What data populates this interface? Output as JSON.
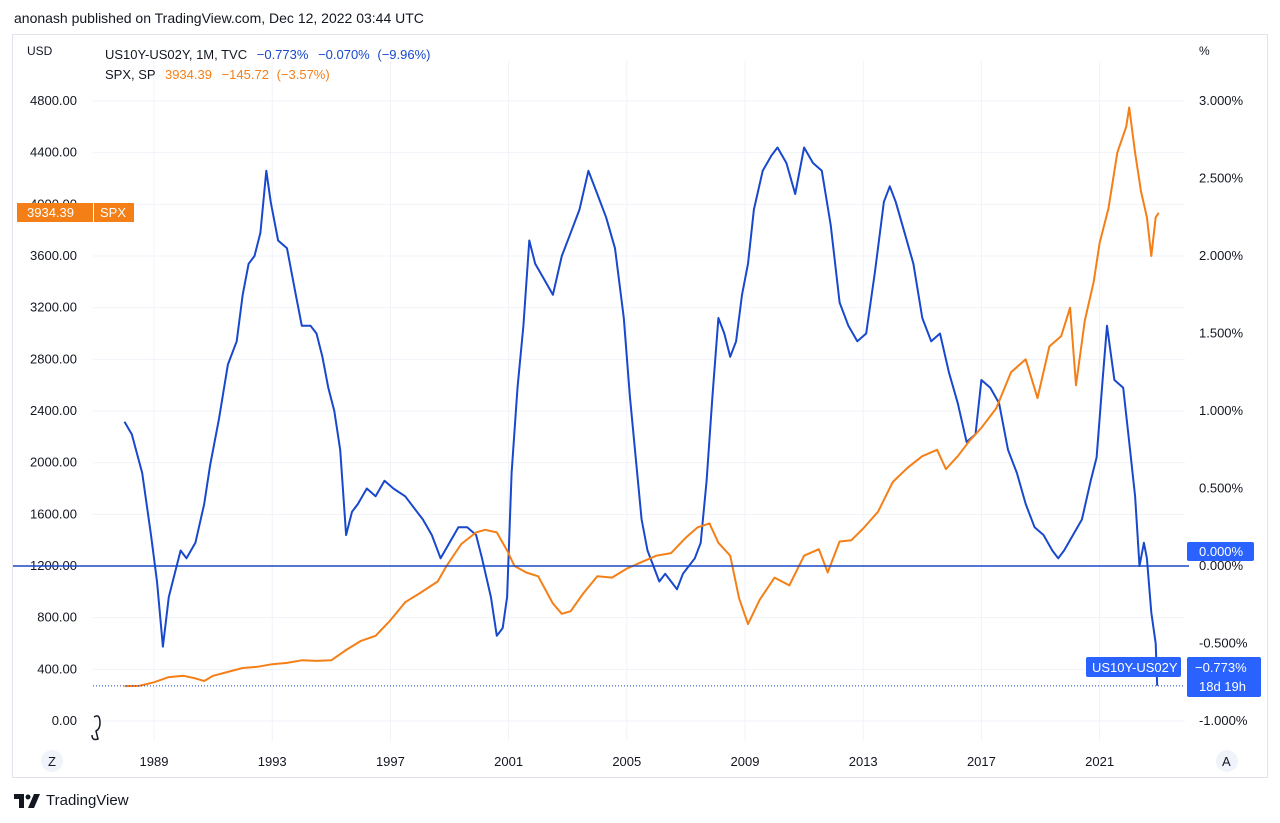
{
  "header": {
    "published": "anonash published on TradingView.com, Dec 12, 2022 03:44 UTC"
  },
  "footer": {
    "brand": "TradingView",
    "logo_icon": "tradingview-logo-icon"
  },
  "colors": {
    "spread": "#1848cc",
    "spx": "#f57f17",
    "grid": "#f0f3fa",
    "text": "#131722",
    "badge_blue": "#2962ff"
  },
  "chart_data": {
    "type": "line",
    "left_axis": {
      "unit_label": "USD",
      "ticks": [
        "4800.00",
        "4400.00",
        "4000.00",
        "3600.00",
        "3200.00",
        "2800.00",
        "2400.00",
        "2000.00",
        "1600.00",
        "1200.00",
        "800.00",
        "400.00",
        "0.00"
      ],
      "range": [
        0,
        4800
      ]
    },
    "right_axis": {
      "unit_label": "%",
      "ticks": [
        "3.000%",
        "2.500%",
        "2.000%",
        "1.500%",
        "1.000%",
        "0.500%",
        "0.000%",
        "-0.500%",
        "-1.000%"
      ],
      "range": [
        -1.0,
        3.0
      ]
    },
    "x_axis": {
      "ticks": [
        "1989",
        "1993",
        "1997",
        "2001",
        "2005",
        "2009",
        "2013",
        "2017",
        "2021"
      ]
    },
    "corner_buttons": {
      "left": "Z",
      "right": "A"
    },
    "legend": [
      {
        "name": "US10Y-US02Y, 1M, TVC",
        "last": "−0.773%",
        "change": "−0.070%",
        "change_pct": "(−9.96%)"
      },
      {
        "name": "SPX, SP",
        "last": "3934.39",
        "change": "−145.72",
        "change_pct": "(−3.57%)"
      }
    ],
    "badges": {
      "spx_price": "3934.39",
      "spx_label": "SPX",
      "zero_line": "0.000%",
      "spread_label": "US10Y-US02Y",
      "spread_value": "−0.773%",
      "spread_countdown": "18d 19h"
    },
    "series": [
      {
        "name": "US10Y-US02Y",
        "axis": "right",
        "unit": "%",
        "points": [
          [
            1988.0,
            0.93
          ],
          [
            1988.25,
            0.85
          ],
          [
            1988.6,
            0.6
          ],
          [
            1988.9,
            0.2
          ],
          [
            1989.1,
            -0.1
          ],
          [
            1989.3,
            -0.52
          ],
          [
            1989.5,
            -0.2
          ],
          [
            1989.7,
            -0.05
          ],
          [
            1989.9,
            0.1
          ],
          [
            1990.1,
            0.05
          ],
          [
            1990.4,
            0.15
          ],
          [
            1990.7,
            0.4
          ],
          [
            1990.9,
            0.65
          ],
          [
            1991.2,
            0.95
          ],
          [
            1991.5,
            1.3
          ],
          [
            1991.8,
            1.45
          ],
          [
            1992.0,
            1.75
          ],
          [
            1992.2,
            1.95
          ],
          [
            1992.4,
            2.0
          ],
          [
            1992.6,
            2.15
          ],
          [
            1992.8,
            2.55
          ],
          [
            1992.95,
            2.35
          ],
          [
            1993.2,
            2.1
          ],
          [
            1993.5,
            2.05
          ],
          [
            1993.8,
            1.75
          ],
          [
            1994.0,
            1.55
          ],
          [
            1994.3,
            1.55
          ],
          [
            1994.5,
            1.5
          ],
          [
            1994.7,
            1.35
          ],
          [
            1994.9,
            1.15
          ],
          [
            1995.1,
            1.0
          ],
          [
            1995.3,
            0.75
          ],
          [
            1995.5,
            0.2
          ],
          [
            1995.7,
            0.35
          ],
          [
            1995.9,
            0.4
          ],
          [
            1996.2,
            0.5
          ],
          [
            1996.5,
            0.45
          ],
          [
            1996.8,
            0.55
          ],
          [
            1997.1,
            0.5
          ],
          [
            1997.5,
            0.45
          ],
          [
            1997.9,
            0.35
          ],
          [
            1998.1,
            0.3
          ],
          [
            1998.4,
            0.2
          ],
          [
            1998.7,
            0.05
          ],
          [
            1999.0,
            0.15
          ],
          [
            1999.3,
            0.25
          ],
          [
            1999.6,
            0.25
          ],
          [
            1999.9,
            0.2
          ],
          [
            2000.1,
            0.05
          ],
          [
            2000.4,
            -0.2
          ],
          [
            2000.6,
            -0.45
          ],
          [
            2000.8,
            -0.4
          ],
          [
            2000.95,
            -0.2
          ],
          [
            2001.1,
            0.6
          ],
          [
            2001.3,
            1.15
          ],
          [
            2001.5,
            1.55
          ],
          [
            2001.7,
            2.1
          ],
          [
            2001.9,
            1.95
          ],
          [
            2002.2,
            1.85
          ],
          [
            2002.5,
            1.75
          ],
          [
            2002.8,
            2.0
          ],
          [
            2003.1,
            2.15
          ],
          [
            2003.4,
            2.3
          ],
          [
            2003.7,
            2.55
          ],
          [
            2004.0,
            2.4
          ],
          [
            2004.3,
            2.25
          ],
          [
            2004.6,
            2.05
          ],
          [
            2004.9,
            1.6
          ],
          [
            2005.1,
            1.1
          ],
          [
            2005.3,
            0.7
          ],
          [
            2005.5,
            0.3
          ],
          [
            2005.7,
            0.1
          ],
          [
            2005.9,
            0.0
          ],
          [
            2006.1,
            -0.1
          ],
          [
            2006.3,
            -0.05
          ],
          [
            2006.5,
            -0.1
          ],
          [
            2006.7,
            -0.15
          ],
          [
            2006.9,
            -0.05
          ],
          [
            2007.1,
            0.0
          ],
          [
            2007.3,
            0.05
          ],
          [
            2007.5,
            0.15
          ],
          [
            2007.7,
            0.55
          ],
          [
            2007.9,
            1.1
          ],
          [
            2008.1,
            1.6
          ],
          [
            2008.3,
            1.5
          ],
          [
            2008.5,
            1.35
          ],
          [
            2008.7,
            1.45
          ],
          [
            2008.9,
            1.75
          ],
          [
            2009.1,
            1.95
          ],
          [
            2009.3,
            2.3
          ],
          [
            2009.6,
            2.55
          ],
          [
            2009.9,
            2.65
          ],
          [
            2010.1,
            2.7
          ],
          [
            2010.4,
            2.6
          ],
          [
            2010.7,
            2.4
          ],
          [
            2011.0,
            2.7
          ],
          [
            2011.3,
            2.6
          ],
          [
            2011.6,
            2.55
          ],
          [
            2011.9,
            2.2
          ],
          [
            2012.2,
            1.7
          ],
          [
            2012.5,
            1.55
          ],
          [
            2012.8,
            1.45
          ],
          [
            2013.1,
            1.5
          ],
          [
            2013.4,
            1.9
          ],
          [
            2013.7,
            2.35
          ],
          [
            2013.9,
            2.45
          ],
          [
            2014.1,
            2.35
          ],
          [
            2014.4,
            2.15
          ],
          [
            2014.7,
            1.95
          ],
          [
            2015.0,
            1.6
          ],
          [
            2015.3,
            1.45
          ],
          [
            2015.6,
            1.5
          ],
          [
            2015.9,
            1.25
          ],
          [
            2016.2,
            1.05
          ],
          [
            2016.5,
            0.8
          ],
          [
            2016.8,
            0.85
          ],
          [
            2017.0,
            1.2
          ],
          [
            2017.3,
            1.15
          ],
          [
            2017.6,
            1.05
          ],
          [
            2017.9,
            0.75
          ],
          [
            2018.2,
            0.6
          ],
          [
            2018.5,
            0.4
          ],
          [
            2018.8,
            0.25
          ],
          [
            2019.1,
            0.2
          ],
          [
            2019.4,
            0.1
          ],
          [
            2019.6,
            0.05
          ],
          [
            2019.8,
            0.1
          ],
          [
            2020.1,
            0.2
          ],
          [
            2020.4,
            0.3
          ],
          [
            2020.7,
            0.55
          ],
          [
            2020.9,
            0.7
          ],
          [
            2021.1,
            1.2
          ],
          [
            2021.25,
            1.55
          ],
          [
            2021.5,
            1.2
          ],
          [
            2021.8,
            1.15
          ],
          [
            2022.0,
            0.8
          ],
          [
            2022.2,
            0.45
          ],
          [
            2022.35,
            0.0
          ],
          [
            2022.5,
            0.15
          ],
          [
            2022.6,
            0.05
          ],
          [
            2022.75,
            -0.3
          ],
          [
            2022.9,
            -0.5
          ],
          [
            2022.95,
            -0.773
          ]
        ]
      },
      {
        "name": "SPX",
        "axis": "left",
        "unit": "USD",
        "points": [
          [
            1988.0,
            270
          ],
          [
            1988.5,
            272
          ],
          [
            1989.0,
            300
          ],
          [
            1989.5,
            340
          ],
          [
            1990.0,
            350
          ],
          [
            1990.4,
            330
          ],
          [
            1990.7,
            310
          ],
          [
            1991.0,
            350
          ],
          [
            1991.5,
            380
          ],
          [
            1992.0,
            410
          ],
          [
            1992.5,
            420
          ],
          [
            1993.0,
            440
          ],
          [
            1993.5,
            450
          ],
          [
            1994.0,
            470
          ],
          [
            1994.5,
            465
          ],
          [
            1995.0,
            470
          ],
          [
            1995.5,
            550
          ],
          [
            1996.0,
            620
          ],
          [
            1996.5,
            660
          ],
          [
            1997.0,
            780
          ],
          [
            1997.5,
            920
          ],
          [
            1998.0,
            990
          ],
          [
            1998.6,
            1080
          ],
          [
            1998.9,
            1200
          ],
          [
            1999.4,
            1370
          ],
          [
            1999.9,
            1460
          ],
          [
            2000.2,
            1480
          ],
          [
            2000.6,
            1460
          ],
          [
            2000.95,
            1320
          ],
          [
            2001.2,
            1200
          ],
          [
            2001.6,
            1150
          ],
          [
            2002.0,
            1120
          ],
          [
            2002.5,
            910
          ],
          [
            2002.8,
            830
          ],
          [
            2003.1,
            850
          ],
          [
            2003.5,
            980
          ],
          [
            2004.0,
            1120
          ],
          [
            2004.5,
            1110
          ],
          [
            2005.0,
            1180
          ],
          [
            2005.5,
            1230
          ],
          [
            2006.0,
            1280
          ],
          [
            2006.5,
            1300
          ],
          [
            2007.0,
            1420
          ],
          [
            2007.4,
            1500
          ],
          [
            2007.8,
            1530
          ],
          [
            2008.1,
            1380
          ],
          [
            2008.5,
            1280
          ],
          [
            2008.8,
            950
          ],
          [
            2009.1,
            750
          ],
          [
            2009.5,
            940
          ],
          [
            2010.0,
            1110
          ],
          [
            2010.5,
            1050
          ],
          [
            2011.0,
            1280
          ],
          [
            2011.5,
            1330
          ],
          [
            2011.8,
            1150
          ],
          [
            2012.2,
            1390
          ],
          [
            2012.6,
            1400
          ],
          [
            2013.0,
            1490
          ],
          [
            2013.5,
            1620
          ],
          [
            2014.0,
            1850
          ],
          [
            2014.5,
            1960
          ],
          [
            2015.0,
            2050
          ],
          [
            2015.5,
            2100
          ],
          [
            2015.8,
            1950
          ],
          [
            2016.2,
            2050
          ],
          [
            2016.6,
            2170
          ],
          [
            2017.0,
            2270
          ],
          [
            2017.5,
            2420
          ],
          [
            2018.0,
            2700
          ],
          [
            2018.5,
            2800
          ],
          [
            2018.9,
            2500
          ],
          [
            2019.3,
            2900
          ],
          [
            2019.7,
            2980
          ],
          [
            2020.0,
            3200
          ],
          [
            2020.2,
            2600
          ],
          [
            2020.5,
            3100
          ],
          [
            2020.8,
            3400
          ],
          [
            2021.0,
            3700
          ],
          [
            2021.3,
            3970
          ],
          [
            2021.6,
            4400
          ],
          [
            2021.9,
            4600
          ],
          [
            2022.0,
            4750
          ],
          [
            2022.2,
            4400
          ],
          [
            2022.4,
            4100
          ],
          [
            2022.6,
            3900
          ],
          [
            2022.75,
            3600
          ],
          [
            2022.9,
            3900
          ],
          [
            2023.0,
            3934.39
          ]
        ]
      }
    ]
  }
}
